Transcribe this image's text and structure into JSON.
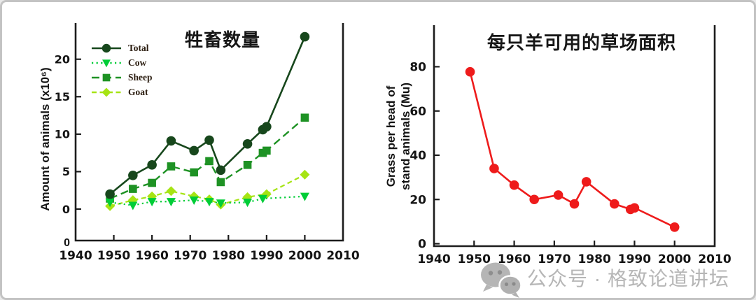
{
  "watermark": {
    "text": "公众号 · 格致论道讲坛",
    "icon": "wechat-icon",
    "color": "#b6b6b6"
  },
  "frame": {
    "border_color": "#c3c3c3",
    "background": "#ffffff"
  },
  "chart_data": [
    {
      "type": "line",
      "title": "牲畜数量",
      "xlabel": "",
      "ylabel": "Amount of animals (x10⁶)",
      "origin_label": "0",
      "xlim": [
        1940,
        2010
      ],
      "ylim": [
        -4.2,
        24.6
      ],
      "xticks": [
        1940,
        1950,
        1960,
        1970,
        1980,
        1990,
        2000,
        2010
      ],
      "yticks": [
        0,
        5,
        10,
        15,
        20
      ],
      "grid": false,
      "legend_position": "top-left",
      "series": [
        {
          "name": "Total",
          "color": "#17471c",
          "marker": "circle",
          "line": "solid",
          "points": [
            [
              1949,
              2.0
            ],
            [
              1955,
              4.5
            ],
            [
              1960,
              5.9
            ],
            [
              1965,
              9.1
            ],
            [
              1971,
              7.8
            ],
            [
              1975,
              9.2
            ],
            [
              1978,
              5.2
            ],
            [
              1985,
              8.7
            ],
            [
              1989,
              10.6
            ],
            [
              1990,
              11.0
            ],
            [
              2000,
              23.0
            ]
          ]
        },
        {
          "name": "Cow",
          "color": "#00cd37",
          "marker": "triangle-down",
          "line": "dotted",
          "points": [
            [
              1949,
              0.9
            ],
            [
              1955,
              0.5
            ],
            [
              1960,
              1.0
            ],
            [
              1965,
              1.0
            ],
            [
              1971,
              1.2
            ],
            [
              1975,
              1.0
            ],
            [
              1978,
              0.8
            ],
            [
              1985,
              0.9
            ],
            [
              1989,
              1.4
            ],
            [
              2000,
              1.7
            ]
          ]
        },
        {
          "name": "Sheep",
          "color": "#1e9224",
          "marker": "square",
          "line": "dashed",
          "points": [
            [
              1949,
              1.4
            ],
            [
              1955,
              2.7
            ],
            [
              1960,
              3.5
            ],
            [
              1965,
              5.7
            ],
            [
              1971,
              4.9
            ],
            [
              1975,
              6.4
            ],
            [
              1978,
              3.6
            ],
            [
              1985,
              5.9
            ],
            [
              1989,
              7.5
            ],
            [
              1990,
              7.8
            ],
            [
              2000,
              12.2
            ]
          ]
        },
        {
          "name": "Goat",
          "color": "#a6e414",
          "marker": "diamond",
          "line": "dash-short",
          "points": [
            [
              1949,
              0.4
            ],
            [
              1955,
              1.2
            ],
            [
              1960,
              1.7
            ],
            [
              1965,
              2.4
            ],
            [
              1971,
              1.7
            ],
            [
              1975,
              1.3
            ],
            [
              1978,
              0.6
            ],
            [
              1985,
              1.6
            ],
            [
              1990,
              2.0
            ],
            [
              2000,
              4.6
            ]
          ]
        }
      ]
    },
    {
      "type": "line",
      "title": "每只羊可用的草场面积",
      "xlabel": "",
      "ylabel_lines": [
        "Grass per head of",
        "stand animals (Mu)"
      ],
      "xlim": [
        1940,
        2010
      ],
      "ylim": [
        0,
        98
      ],
      "xticks": [
        1940,
        1950,
        1960,
        1970,
        1980,
        1990,
        2000,
        2010
      ],
      "yticks": [
        0,
        20,
        40,
        60,
        80
      ],
      "grid": false,
      "legend_position": "none",
      "series": [
        {
          "name": "Grass per head",
          "color": "#ee1b1b",
          "marker": "circle",
          "line": "solid",
          "points": [
            [
              1949,
              77.7
            ],
            [
              1955,
              34.0
            ],
            [
              1960,
              26.5
            ],
            [
              1965,
              20.0
            ],
            [
              1971,
              22.0
            ],
            [
              1975,
              18.0
            ],
            [
              1978,
              28.0
            ],
            [
              1985,
              18.0
            ],
            [
              1989,
              15.5
            ],
            [
              1990,
              16.2
            ],
            [
              2000,
              7.5
            ]
          ]
        }
      ]
    }
  ]
}
